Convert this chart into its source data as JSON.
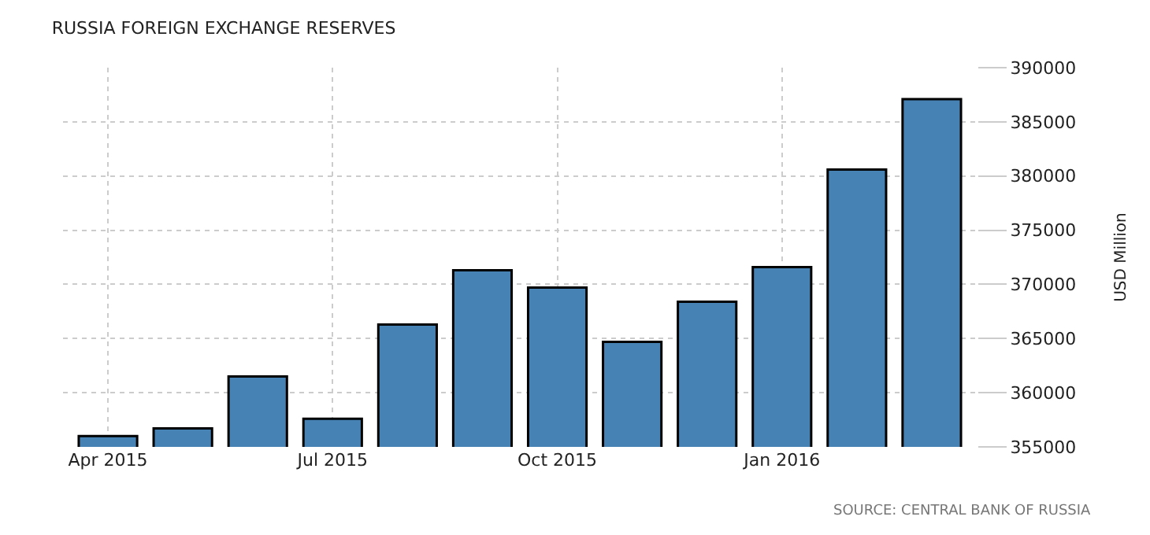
{
  "chart_data": {
    "type": "bar",
    "title": "RUSSIA FOREIGN EXCHANGE RESERVES",
    "ylabel": "USD Million",
    "categories": [
      "Apr 2015",
      null,
      null,
      "Jul 2015",
      null,
      null,
      "Oct 2015",
      null,
      null,
      "Jan 2016",
      null,
      null
    ],
    "values": [
      356000,
      356700,
      361500,
      357600,
      366300,
      371300,
      369700,
      364700,
      368400,
      371600,
      380600,
      387100
    ],
    "color": "#4682b4",
    "ylim": [
      355000,
      390000
    ],
    "yticks": [
      355000,
      360000,
      365000,
      370000,
      375000,
      380000,
      385000,
      390000
    ],
    "grid": true,
    "annotations": [
      "SOURCE: CENTRAL BANK OF RUSSIA"
    ]
  }
}
